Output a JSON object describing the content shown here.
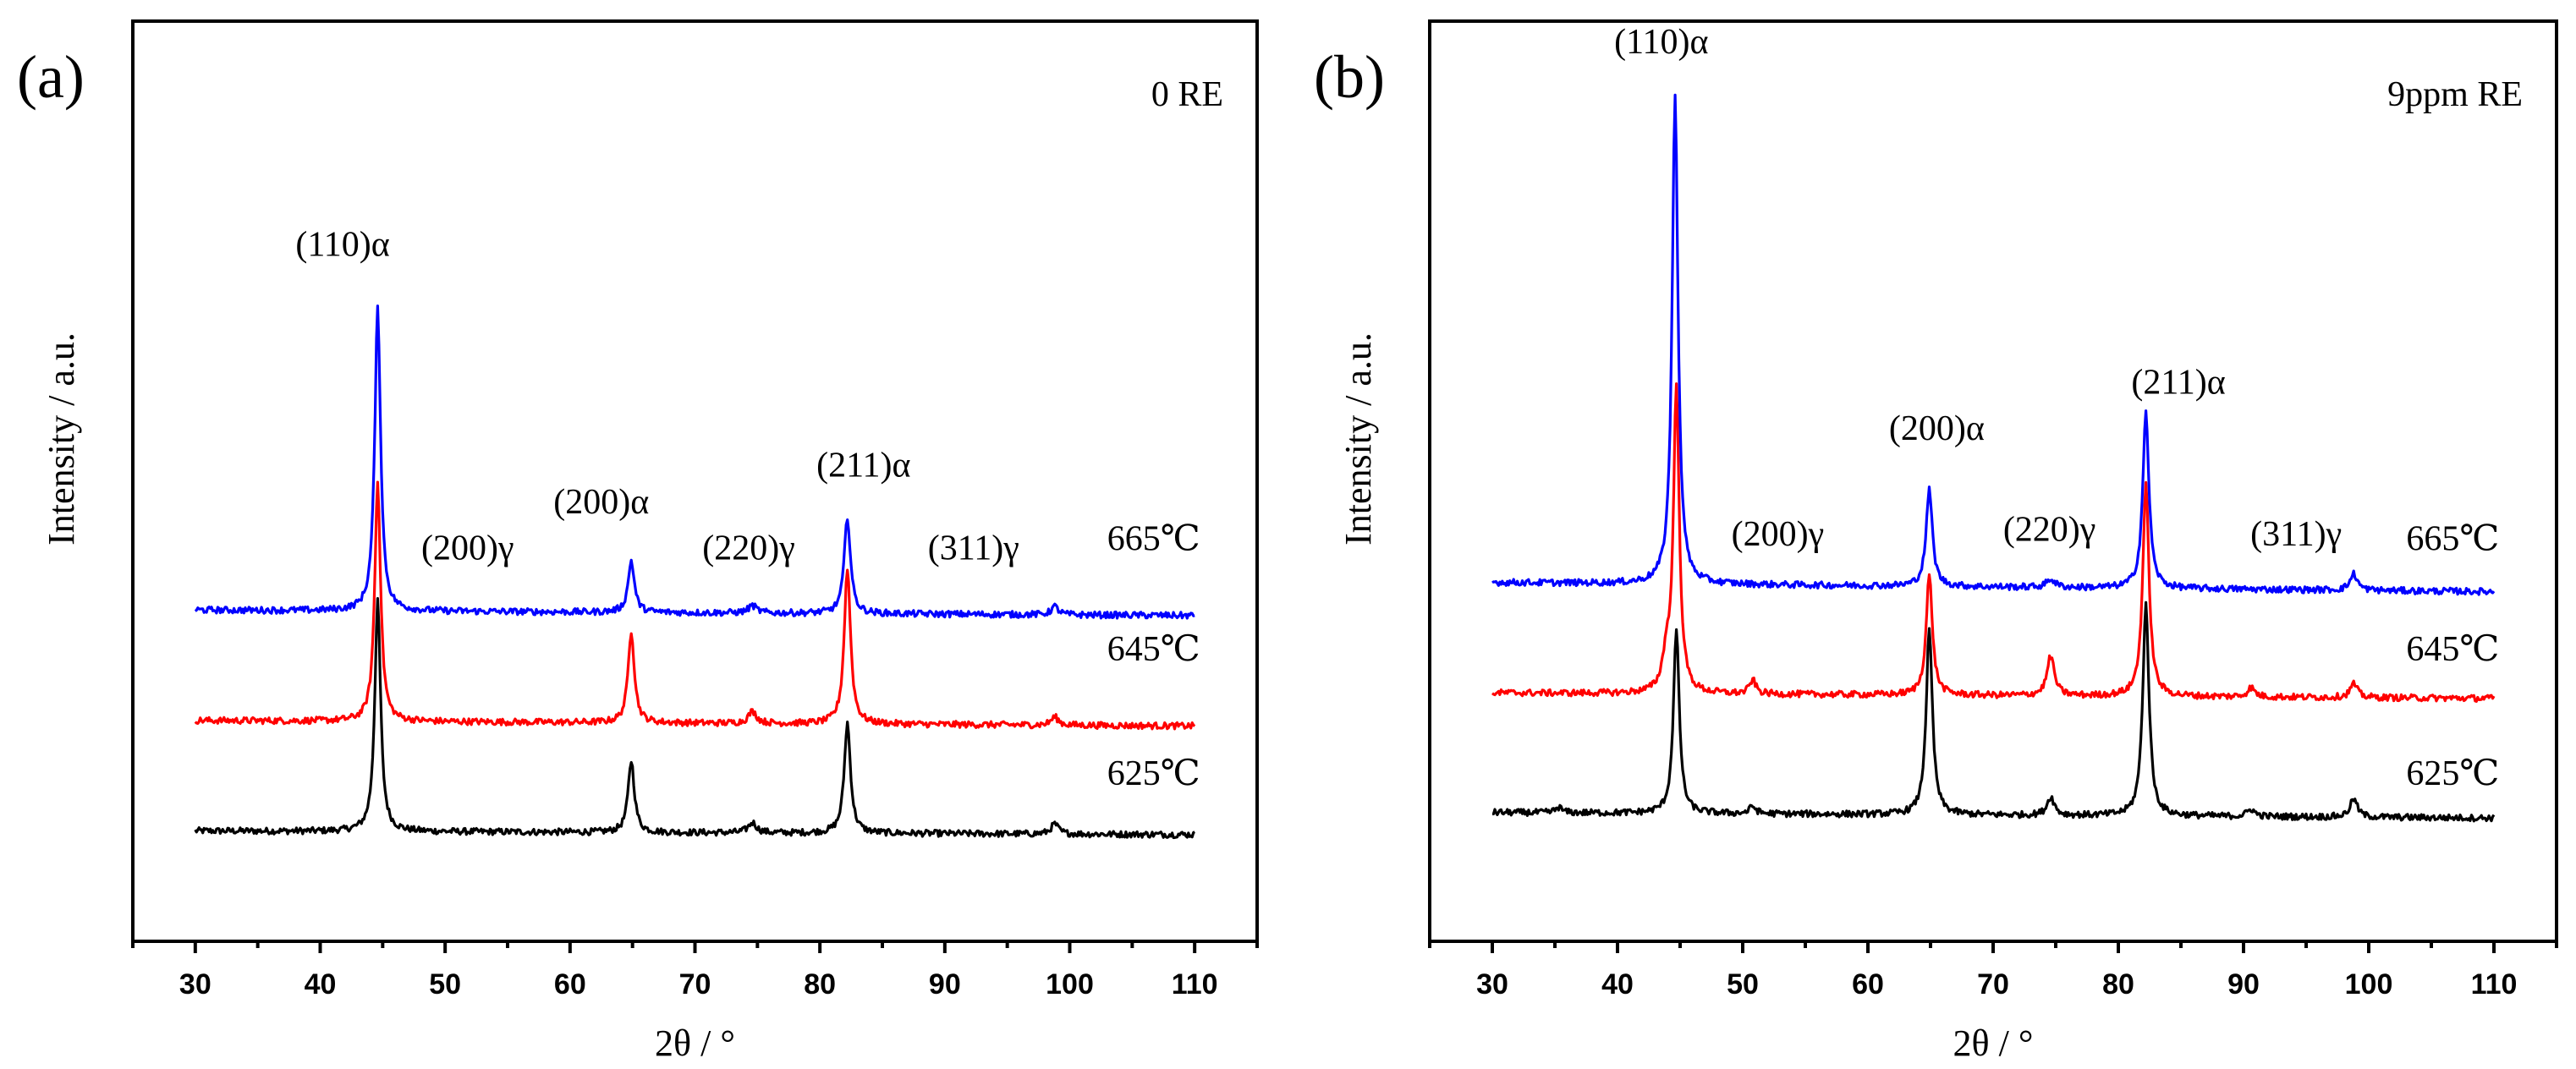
{
  "chart_data": [
    {
      "type": "line",
      "panel_label": "(a)",
      "condition": "0 RE",
      "xlabel": "2θ / °",
      "ylabel": "Intensity / a.u.",
      "xlim": [
        25,
        115
      ],
      "ylim": [
        0,
        100
      ],
      "xticks": [
        30,
        40,
        50,
        60,
        70,
        80,
        90,
        100,
        110
      ],
      "grid": false,
      "series": [
        {
          "name": "665℃",
          "color": "#0000ff",
          "baseline": 36,
          "slope": -0.6,
          "noise": 0.35,
          "peaks": [
            [
              44.6,
              33,
              0.28
            ],
            [
              64.9,
              5.6,
              0.3
            ],
            [
              74.6,
              0.8,
              0.4
            ],
            [
              82.2,
              10.5,
              0.3
            ],
            [
              98.8,
              0.9,
              0.35
            ]
          ]
        },
        {
          "name": "645℃",
          "color": "#ff0000",
          "baseline": 24,
          "slope": -0.6,
          "noise": 0.35,
          "peaks": [
            [
              44.6,
              26,
              0.28
            ],
            [
              64.9,
              10,
              0.3
            ],
            [
              74.6,
              1.3,
              0.4
            ],
            [
              82.2,
              17,
              0.3
            ],
            [
              98.8,
              0.9,
              0.35
            ]
          ]
        },
        {
          "name": "625℃",
          "color": "#000000",
          "baseline": 12,
          "slope": -0.4,
          "noise": 0.35,
          "peaks": [
            [
              44.6,
              25,
              0.28
            ],
            [
              64.9,
              7.8,
              0.3
            ],
            [
              74.6,
              1.1,
              0.4
            ],
            [
              82.2,
              12,
              0.3
            ],
            [
              98.8,
              1.1,
              0.35
            ]
          ]
        }
      ],
      "series_labels": [
        {
          "text": "665℃",
          "x": 103,
          "y": 42.5
        },
        {
          "text": "645℃",
          "x": 103,
          "y": 30.5
        },
        {
          "text": "625℃",
          "x": 103,
          "y": 17
        }
      ],
      "annotations": [
        {
          "text": "(110)α",
          "x": 41.8,
          "y": 74.5
        },
        {
          "text": "(200)γ",
          "x": 51.8,
          "y": 41.5
        },
        {
          "text": "(200)α",
          "x": 62.5,
          "y": 46.5
        },
        {
          "text": "(220)γ",
          "x": 74.3,
          "y": 41.5
        },
        {
          "text": "(211)α",
          "x": 83.5,
          "y": 50.5
        },
        {
          "text": "(311)γ",
          "x": 92.3,
          "y": 41.5
        }
      ]
    },
    {
      "type": "line",
      "panel_label": "(b)",
      "condition": "9ppm RE",
      "xlabel": "2θ / °",
      "ylabel": "Intensity / a.u.",
      "xlim": [
        25,
        115
      ],
      "ylim": [
        0,
        100
      ],
      "xticks": [
        30,
        40,
        50,
        60,
        70,
        80,
        90,
        100,
        110
      ],
      "grid": false,
      "series": [
        {
          "name": "665℃",
          "color": "#0000ff",
          "baseline": 39,
          "slope": -1.0,
          "noise": 0.35,
          "peaks": [
            [
              44.6,
              53,
              0.28
            ],
            [
              64.9,
              10.5,
              0.3
            ],
            [
              74.6,
              0.9,
              0.4
            ],
            [
              82.2,
              19,
              0.3
            ],
            [
              98.8,
              1.8,
              0.35
            ]
          ]
        },
        {
          "name": "645℃",
          "color": "#ff0000",
          "baseline": 27,
          "slope": -0.6,
          "noise": 0.35,
          "peaks": [
            [
              43.9,
              3.5,
              0.35
            ],
            [
              44.7,
              33,
              0.28
            ],
            [
              50.8,
              1.5,
              0.3
            ],
            [
              64.9,
              13,
              0.3
            ],
            [
              74.6,
              4.3,
              0.35
            ],
            [
              82.2,
              23,
              0.3
            ],
            [
              90.6,
              1.0,
              0.35
            ],
            [
              98.8,
              1.5,
              0.35
            ]
          ]
        },
        {
          "name": "625℃",
          "color": "#000000",
          "baseline": 14,
          "slope": -0.6,
          "noise": 0.35,
          "peaks": [
            [
              35.3,
              0.6,
              0.3
            ],
            [
              44.7,
              20,
              0.28
            ],
            [
              50.8,
              0.8,
              0.3
            ],
            [
              64.9,
              20,
              0.3
            ],
            [
              74.6,
              2.0,
              0.35
            ],
            [
              82.2,
              23,
              0.3
            ],
            [
              90.6,
              0.8,
              0.35
            ],
            [
              98.8,
              2.0,
              0.35
            ]
          ]
        }
      ],
      "series_labels": [
        {
          "text": "665℃",
          "x": 103,
          "y": 42.5
        },
        {
          "text": "645℃",
          "x": 103,
          "y": 30.5
        },
        {
          "text": "625℃",
          "x": 103,
          "y": 17
        }
      ],
      "annotations": [
        {
          "text": "(110)α",
          "x": 43.5,
          "y": 96.5
        },
        {
          "text": "(200)γ",
          "x": 52.8,
          "y": 43
        },
        {
          "text": "(200)α",
          "x": 65.5,
          "y": 54.5
        },
        {
          "text": "(220)γ",
          "x": 74.5,
          "y": 43.5
        },
        {
          "text": "(211)α",
          "x": 84.8,
          "y": 59.5
        },
        {
          "text": "(311)γ",
          "x": 94.2,
          "y": 43
        }
      ]
    }
  ]
}
